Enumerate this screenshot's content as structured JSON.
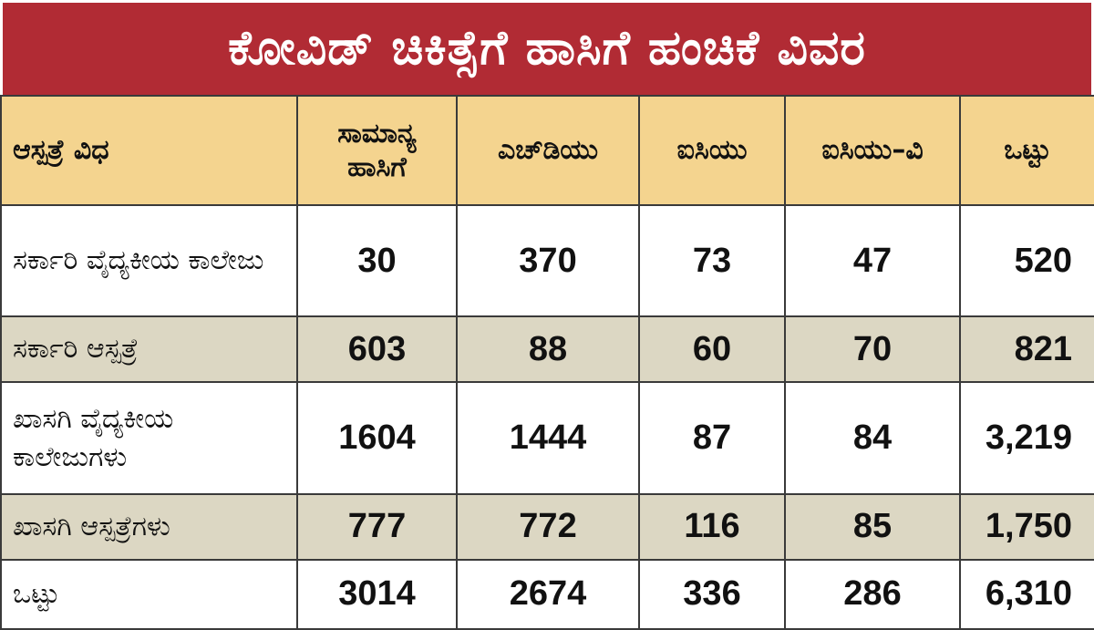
{
  "title": "ಕೋವಿಡ್ ಚಿಕಿತ್ಸೆಗೆ ಹಾಸಿಗೆ ಹಂಚಿಕೆ ವಿವರ",
  "colors": {
    "title_bg": "#b12b34",
    "header_bg": "#f4d48f",
    "shade_row": "#dcd7c3"
  },
  "chart_data": {
    "type": "table",
    "title": "ಕೋವಿಡ್ ಚಿಕಿತ್ಸೆಗೆ ಹಾಸಿಗೆ ಹಂಚಿಕೆ ವಿವರ",
    "columns": [
      "ಆಸ್ಪತ್ರೆ ವಿಧ",
      "ಸಾಮಾನ್ಯ ಹಾಸಿಗೆ",
      "ಎಚ್‌ಡಿಯು",
      "ಐಸಿಯು",
      "ಐಸಿಯು–ವಿ",
      "ಒಟ್ಟು"
    ],
    "rows": [
      [
        "ಸರ್ಕಾರಿ ವೈದ್ಯಕೀಯ ಕಾಲೇಜು",
        "30",
        "370",
        "73",
        "47",
        "520"
      ],
      [
        "ಸರ್ಕಾರಿ ಆಸ್ಪತ್ರೆ",
        "603",
        "88",
        "60",
        "70",
        "821"
      ],
      [
        "ಖಾಸಗಿ ವೈದ್ಯಕೀಯ ಕಾಲೇಜುಗಳು",
        "1604",
        "1444",
        "87",
        "84",
        "3,219"
      ],
      [
        "ಖಾಸಗಿ ಆಸ್ಪತ್ರೆಗಳು",
        "777",
        "772",
        "116",
        "85",
        "1,750"
      ],
      [
        "ಒಟ್ಟು",
        "3014",
        "2674",
        "336",
        "286",
        "6,310"
      ]
    ]
  }
}
